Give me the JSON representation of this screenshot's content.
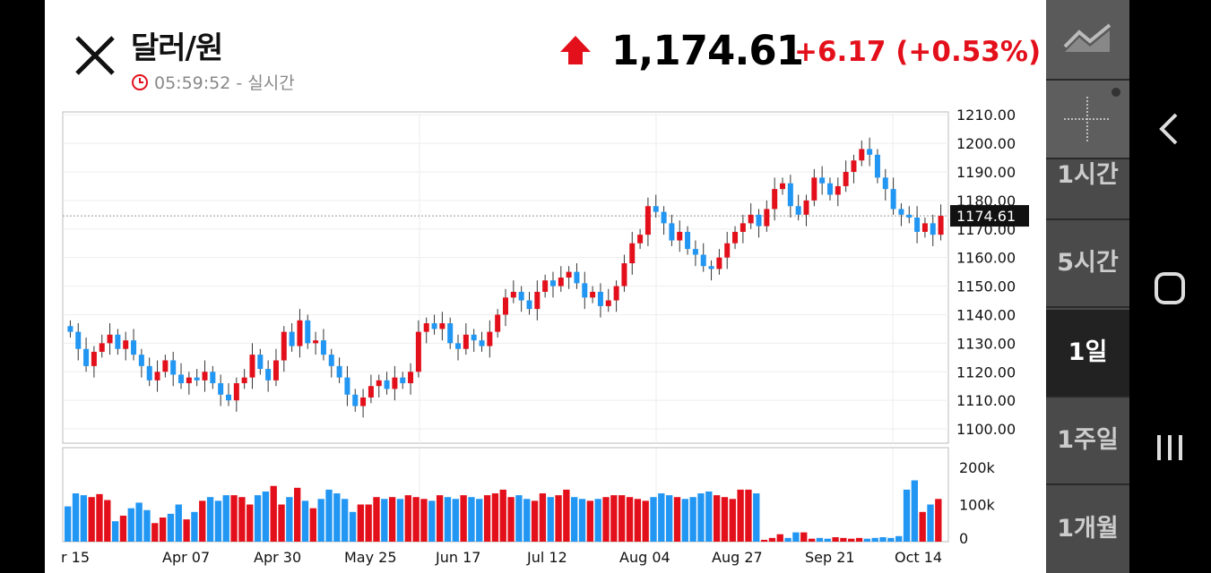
{
  "header": {
    "title": "달러/원",
    "time": "05:59:52 - 실시간",
    "price": "1,174.61",
    "change": "+6.17  (+0.53%)",
    "up_color": "#e3101b"
  },
  "side_panel": {
    "items": [
      {
        "label": "",
        "icon": "line-chart-icon"
      },
      {
        "label": "",
        "icon": "crosshair-icon"
      },
      {
        "label": "1시간"
      },
      {
        "label": "5시간"
      },
      {
        "label": "1일",
        "selected": true
      },
      {
        "label": "1주일"
      },
      {
        "label": "1개월"
      }
    ]
  },
  "nav": {
    "icons": [
      "back-icon",
      "home-icon",
      "recents-icon"
    ]
  },
  "chart_data": {
    "type": "candlestick",
    "current_price_label": "1174.61",
    "y_ticks": [
      "1100.00",
      "1110.00",
      "1120.00",
      "1130.00",
      "1140.00",
      "1150.00",
      "1160.00",
      "1170.00",
      "1180.00",
      "1190.00",
      "1200.00",
      "1210.00"
    ],
    "ylim": [
      1095,
      1211
    ],
    "x_labels": [
      "r 15",
      "Apr 07",
      "Apr 30",
      "May 25",
      "Jun 17",
      "Jul 12",
      "Aug 04",
      "Aug 27",
      "Sep 21",
      "Oct 14"
    ],
    "volume_ticks": [
      "0",
      "100k",
      "200k"
    ],
    "up_color": "#e3101b",
    "down_color": "#2196f3",
    "series_close": [
      1134,
      1128,
      1122,
      1127,
      1130,
      1133,
      1128,
      1131,
      1126,
      1122,
      1117,
      1120,
      1124,
      1119,
      1116,
      1118,
      1117,
      1120,
      1116,
      1112,
      1110,
      1116,
      1118,
      1126,
      1121,
      1117,
      1124,
      1134,
      1129,
      1138,
      1130,
      1131,
      1126,
      1122,
      1118,
      1112,
      1108,
      1111,
      1115,
      1117,
      1114,
      1118,
      1116,
      1120,
      1134,
      1137,
      1135,
      1137,
      1130,
      1128,
      1133,
      1131,
      1129,
      1134,
      1140,
      1146,
      1148,
      1145,
      1142,
      1148,
      1152,
      1150,
      1153,
      1155,
      1151,
      1146,
      1148,
      1143,
      1145,
      1150,
      1158,
      1165,
      1168,
      1178,
      1176,
      1172,
      1166,
      1169,
      1163,
      1161,
      1157,
      1156,
      1160,
      1165,
      1169,
      1172,
      1175,
      1171,
      1177,
      1184,
      1186,
      1178,
      1175,
      1180,
      1188,
      1186,
      1182,
      1185,
      1190,
      1194,
      1198,
      1196,
      1188,
      1184,
      1177,
      1175,
      1174,
      1169,
      1172,
      1168,
      1174.61
    ],
    "series_volume": [
      95,
      130,
      125,
      120,
      128,
      112,
      55,
      70,
      90,
      105,
      85,
      50,
      65,
      75,
      100,
      60,
      80,
      110,
      120,
      110,
      125,
      125,
      120,
      100,
      125,
      135,
      150,
      100,
      120,
      145,
      110,
      90,
      115,
      140,
      130,
      115,
      80,
      100,
      100,
      120,
      115,
      120,
      115,
      125,
      120,
      115,
      110,
      125,
      120,
      115,
      125,
      120,
      115,
      125,
      130,
      140,
      120,
      125,
      115,
      110,
      130,
      120,
      125,
      140,
      120,
      115,
      110,
      115,
      120,
      125,
      125,
      120,
      115,
      110,
      120,
      130,
      125,
      120,
      115,
      120,
      130,
      135,
      125,
      120,
      115,
      140,
      140,
      130,
      5,
      10,
      20,
      10,
      25,
      25,
      8,
      10,
      8,
      12,
      10,
      8,
      10,
      8,
      10,
      12,
      10,
      15,
      140,
      165,
      80,
      100,
      115
    ],
    "volume_max": 200
  }
}
